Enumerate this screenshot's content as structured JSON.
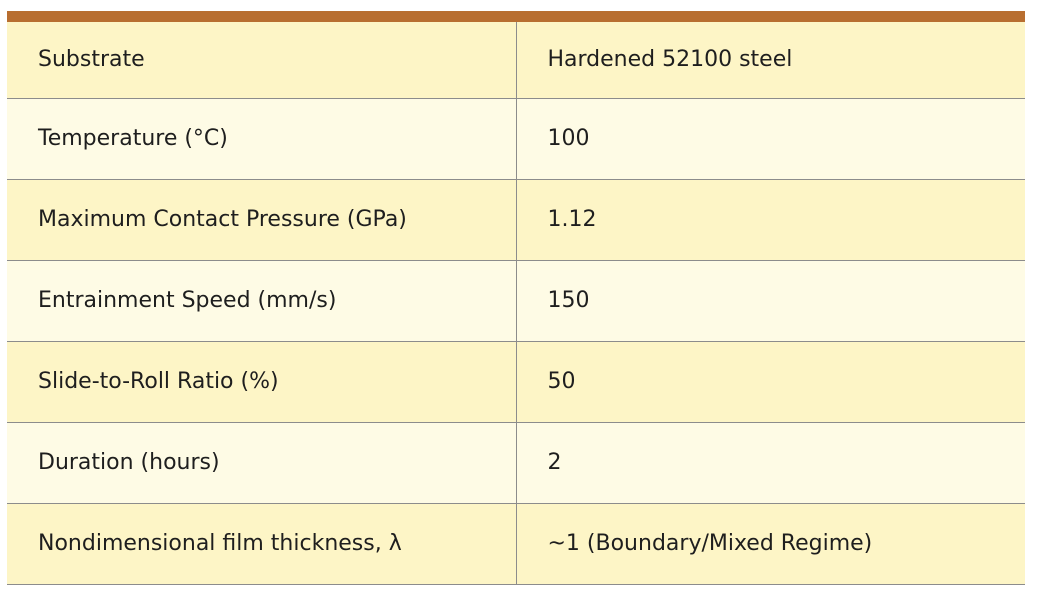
{
  "table": {
    "rows": [
      [
        "Substrate",
        "Hardened 52100 steel"
      ],
      [
        "Temperature (°C)",
        "100"
      ],
      [
        "Maximum Contact Pressure (GPa)",
        "1.12"
      ],
      [
        "Entrainment Speed (mm/s)",
        "150"
      ],
      [
        "Slide-to-Roll Ratio (%)",
        "50"
      ],
      [
        "Duration (hours)",
        "2"
      ],
      [
        "Nondimensional film thickness, λ",
        "~1 (Boundary/Mixed Regime)"
      ]
    ]
  }
}
